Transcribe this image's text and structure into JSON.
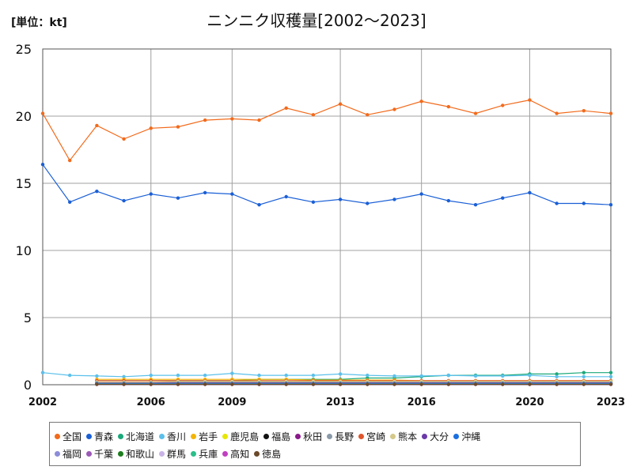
{
  "unit_label": "[単位：kt]",
  "title": "ニンニク収穫量[2002～2023]",
  "chart_data": {
    "type": "line",
    "title": "ニンニク収穫量[2002～2023]",
    "unit": "[単位：kt]",
    "xlim": [
      2002,
      2023
    ],
    "ylim": [
      0,
      25
    ],
    "yticks": [
      0,
      5,
      10,
      15,
      20,
      25
    ],
    "xticks": [
      2002,
      2006,
      2009,
      2013,
      2016,
      2020,
      2023
    ],
    "grid": true,
    "legend_position": "bottom",
    "series": [
      {
        "name": "全国",
        "color": "#f26a1b",
        "x": [
          2002,
          2003,
          2004,
          2005,
          2006,
          2007,
          2008,
          2009,
          2010,
          2011,
          2012,
          2013,
          2014,
          2015,
          2016,
          2017,
          2018,
          2019,
          2020,
          2021,
          2022,
          2023
        ],
        "values": [
          20.2,
          16.7,
          19.3,
          18.3,
          19.1,
          19.2,
          19.7,
          19.8,
          19.7,
          20.6,
          20.1,
          20.9,
          20.1,
          20.5,
          21.1,
          20.7,
          20.2,
          20.8,
          21.2,
          20.2,
          20.4,
          20.2
        ]
      },
      {
        "name": "青森",
        "color": "#1a5fd6",
        "x": [
          2002,
          2003,
          2004,
          2005,
          2006,
          2007,
          2008,
          2009,
          2010,
          2011,
          2012,
          2013,
          2014,
          2015,
          2016,
          2017,
          2018,
          2019,
          2020,
          2021,
          2022,
          2023
        ],
        "values": [
          16.4,
          13.6,
          14.4,
          13.7,
          14.2,
          13.9,
          14.3,
          14.2,
          13.4,
          14.0,
          13.6,
          13.8,
          13.5,
          13.8,
          14.2,
          13.7,
          13.4,
          13.9,
          14.3,
          13.5,
          13.5,
          13.4
        ]
      },
      {
        "name": "北海道",
        "color": "#1aa87a",
        "x": [
          2004,
          2005,
          2006,
          2007,
          2008,
          2009,
          2010,
          2011,
          2012,
          2013,
          2014,
          2015,
          2016,
          2017,
          2018,
          2019,
          2020,
          2021,
          2022,
          2023
        ],
        "values": [
          0.3,
          0.3,
          0.3,
          0.3,
          0.3,
          0.3,
          0.4,
          0.4,
          0.4,
          0.4,
          0.5,
          0.5,
          0.6,
          0.7,
          0.7,
          0.7,
          0.8,
          0.8,
          0.9,
          0.9
        ]
      },
      {
        "name": "香川",
        "color": "#5bc0eb",
        "x": [
          2002,
          2003,
          2004,
          2005,
          2006,
          2007,
          2008,
          2009,
          2010,
          2011,
          2012,
          2013,
          2014,
          2015,
          2016,
          2017,
          2018,
          2019,
          2020,
          2021,
          2022,
          2023
        ],
        "values": [
          0.9,
          0.7,
          0.65,
          0.6,
          0.7,
          0.7,
          0.7,
          0.85,
          0.7,
          0.7,
          0.7,
          0.8,
          0.7,
          0.65,
          0.65,
          0.7,
          0.65,
          0.65,
          0.7,
          0.6,
          0.6,
          0.6
        ]
      },
      {
        "name": "岩手",
        "color": "#f5b400",
        "x": [
          2004,
          2005,
          2006,
          2007,
          2008,
          2009,
          2010,
          2011,
          2012,
          2013,
          2014,
          2015,
          2016,
          2017,
          2018,
          2019,
          2020,
          2021,
          2022,
          2023
        ],
        "values": [
          0.4,
          0.4,
          0.4,
          0.4,
          0.4,
          0.4,
          0.4,
          0.4,
          0.35,
          0.35,
          0.35,
          0.35,
          0.3,
          0.3,
          0.3,
          0.3,
          0.3,
          0.3,
          0.3,
          0.3
        ]
      },
      {
        "name": "鹿児島",
        "color": "#e6e600",
        "x": [
          2004,
          2005,
          2006,
          2007,
          2008,
          2009,
          2010,
          2011,
          2012,
          2013,
          2014,
          2015,
          2016,
          2017,
          2018,
          2019,
          2020,
          2021,
          2022,
          2023
        ],
        "values": [
          0.1,
          0.15,
          0.15,
          0.15,
          0.2,
          0.3,
          0.3,
          0.25,
          0.2,
          0.2,
          0.2,
          0.2,
          0.2,
          0.2,
          0.2,
          0.2,
          0.2,
          0.2,
          0.2,
          0.2
        ]
      },
      {
        "name": "福島",
        "color": "#111111",
        "x": [
          2004,
          2005,
          2006,
          2007,
          2008,
          2009,
          2010,
          2011,
          2012,
          2013,
          2014,
          2015,
          2016,
          2017,
          2018,
          2019,
          2020,
          2021,
          2022,
          2023
        ],
        "values": [
          0.1,
          0.1,
          0.1,
          0.1,
          0.1,
          0.1,
          0.1,
          0.1,
          0.1,
          0.1,
          0.1,
          0.1,
          0.1,
          0.1,
          0.1,
          0.1,
          0.1,
          0.1,
          0.1,
          0.1
        ]
      },
      {
        "name": "秋田",
        "color": "#8b1a8b",
        "x": [
          2004,
          2005,
          2006,
          2007,
          2008,
          2009,
          2010,
          2011,
          2012,
          2013,
          2014,
          2015,
          2016,
          2017,
          2018,
          2019,
          2020,
          2021,
          2022,
          2023
        ],
        "values": [
          0.15,
          0.15,
          0.15,
          0.15,
          0.15,
          0.15,
          0.15,
          0.15,
          0.15,
          0.15,
          0.15,
          0.15,
          0.15,
          0.15,
          0.15,
          0.15,
          0.15,
          0.15,
          0.15,
          0.15
        ]
      },
      {
        "name": "長野",
        "color": "#8a99a8",
        "x": [
          2004,
          2005,
          2006,
          2007,
          2008,
          2009,
          2010,
          2011,
          2012,
          2013,
          2014,
          2015,
          2016,
          2017,
          2018,
          2019,
          2020,
          2021,
          2022,
          2023
        ],
        "values": [
          0.2,
          0.2,
          0.2,
          0.2,
          0.2,
          0.2,
          0.2,
          0.2,
          0.2,
          0.2,
          0.2,
          0.2,
          0.2,
          0.2,
          0.2,
          0.2,
          0.2,
          0.2,
          0.2,
          0.2
        ]
      },
      {
        "name": "宮崎",
        "color": "#e0552b",
        "x": [
          2004,
          2005,
          2006,
          2007,
          2008,
          2009,
          2010,
          2011,
          2012,
          2013,
          2014,
          2015,
          2016,
          2017,
          2018,
          2019,
          2020,
          2021,
          2022,
          2023
        ],
        "values": [
          0.3,
          0.3,
          0.3,
          0.3,
          0.3,
          0.3,
          0.3,
          0.3,
          0.3,
          0.3,
          0.3,
          0.3,
          0.3,
          0.3,
          0.3,
          0.3,
          0.3,
          0.3,
          0.3,
          0.3
        ]
      },
      {
        "name": "熊本",
        "color": "#d4c98a",
        "x": [
          2004,
          2005,
          2006,
          2007,
          2008,
          2009,
          2010,
          2011,
          2012,
          2013,
          2014,
          2015,
          2016,
          2017,
          2018,
          2019,
          2020,
          2021,
          2022,
          2023
        ],
        "values": [
          0.2,
          0.2,
          0.2,
          0.25,
          0.25,
          0.25,
          0.25,
          0.25,
          0.25,
          0.25,
          0.25,
          0.25,
          0.25,
          0.25,
          0.25,
          0.25,
          0.25,
          0.25,
          0.25,
          0.25
        ]
      },
      {
        "name": "大分",
        "color": "#6a3aa8",
        "x": [
          2004,
          2005,
          2006,
          2007,
          2008,
          2009,
          2010,
          2011,
          2012,
          2013,
          2014,
          2015,
          2016,
          2017,
          2018,
          2019,
          2020,
          2021,
          2022,
          2023
        ],
        "values": [
          0.1,
          0.1,
          0.1,
          0.1,
          0.1,
          0.1,
          0.1,
          0.1,
          0.1,
          0.1,
          0.1,
          0.1,
          0.1,
          0.1,
          0.1,
          0.1,
          0.1,
          0.1,
          0.1,
          0.1
        ]
      },
      {
        "name": "沖縄",
        "color": "#1a6fe0",
        "x": [
          2004,
          2005,
          2006,
          2007,
          2008,
          2009,
          2010,
          2011,
          2012,
          2013,
          2014,
          2015,
          2016,
          2017,
          2018,
          2019,
          2020,
          2021,
          2022,
          2023
        ],
        "values": [
          0.1,
          0.1,
          0.1,
          0.1,
          0.1,
          0.1,
          0.1,
          0.1,
          0.1,
          0.1,
          0.1,
          0.1,
          0.1,
          0.1,
          0.1,
          0.1,
          0.1,
          0.1,
          0.1,
          0.1
        ]
      },
      {
        "name": "福岡",
        "color": "#8c8cd9",
        "x": [
          2004,
          2005,
          2006,
          2007,
          2008,
          2009,
          2010,
          2011,
          2012,
          2013,
          2014,
          2015,
          2016,
          2017,
          2018,
          2019,
          2020,
          2021,
          2022,
          2023
        ],
        "values": [
          0.05,
          0.05,
          0.05,
          0.05,
          0.05,
          0.05,
          0.05,
          0.05,
          0.05,
          0.05,
          0.05,
          0.05,
          0.05,
          0.05,
          0.05,
          0.05,
          0.05,
          0.05,
          0.05,
          0.05
        ]
      },
      {
        "name": "千葉",
        "color": "#9b59b6",
        "x": [
          2004,
          2005,
          2006,
          2007,
          2008,
          2009,
          2010,
          2011,
          2012,
          2013,
          2014,
          2015,
          2016,
          2017,
          2018,
          2019,
          2020,
          2021,
          2022,
          2023
        ],
        "values": [
          0.05,
          0.05,
          0.05,
          0.05,
          0.05,
          0.05,
          0.05,
          0.05,
          0.05,
          0.05,
          0.05,
          0.05,
          0.05,
          0.05,
          0.05,
          0.05,
          0.05,
          0.05,
          0.05,
          0.05
        ]
      },
      {
        "name": "和歌山",
        "color": "#1e7d1e",
        "x": [
          2004,
          2005,
          2006,
          2007,
          2008,
          2009,
          2010,
          2011,
          2012,
          2013,
          2014,
          2015,
          2016,
          2017,
          2018,
          2019,
          2020,
          2021,
          2022,
          2023
        ],
        "values": [
          0.05,
          0.05,
          0.05,
          0.05,
          0.05,
          0.05,
          0.05,
          0.05,
          0.05,
          0.05,
          0.05,
          0.05,
          0.05,
          0.05,
          0.05,
          0.05,
          0.05,
          0.05,
          0.05,
          0.05
        ]
      },
      {
        "name": "群馬",
        "color": "#c9b3e6",
        "x": [
          2004,
          2005,
          2006,
          2007,
          2008,
          2009,
          2010,
          2011,
          2012,
          2013,
          2014,
          2015,
          2016,
          2017,
          2018,
          2019,
          2020,
          2021,
          2022,
          2023
        ],
        "values": [
          0.05,
          0.05,
          0.05,
          0.05,
          0.05,
          0.05,
          0.05,
          0.05,
          0.05,
          0.05,
          0.05,
          0.05,
          0.05,
          0.05,
          0.05,
          0.05,
          0.05,
          0.05,
          0.05,
          0.05
        ]
      },
      {
        "name": "兵庫",
        "color": "#2bbf8a",
        "x": [
          2004,
          2005,
          2006,
          2007,
          2008,
          2009,
          2010,
          2011,
          2012,
          2013,
          2014,
          2015,
          2016,
          2017,
          2018,
          2019,
          2020,
          2021,
          2022,
          2023
        ],
        "values": [
          0.05,
          0.05,
          0.05,
          0.05,
          0.05,
          0.05,
          0.05,
          0.05,
          0.05,
          0.05,
          0.05,
          0.05,
          0.05,
          0.05,
          0.05,
          0.05,
          0.05,
          0.05,
          0.05,
          0.05
        ]
      },
      {
        "name": "高知",
        "color": "#c040c0",
        "x": [
          2004,
          2005,
          2006,
          2007,
          2008,
          2009,
          2010,
          2011,
          2012,
          2013,
          2014,
          2015,
          2016,
          2017,
          2018,
          2019,
          2020,
          2021,
          2022,
          2023
        ],
        "values": [
          0.03,
          0.03,
          0.03,
          0.03,
          0.03,
          0.03,
          0.03,
          0.03,
          0.03,
          0.03,
          0.03,
          0.03,
          0.03,
          0.03,
          0.03,
          0.03,
          0.03,
          0.03,
          0.03,
          0.03
        ]
      },
      {
        "name": "徳島",
        "color": "#6b4a2a",
        "x": [
          2004,
          2005,
          2006,
          2007,
          2008,
          2009,
          2010,
          2011,
          2012,
          2013,
          2014,
          2015,
          2016,
          2017,
          2018,
          2019,
          2020,
          2021,
          2022,
          2023
        ],
        "values": [
          0.03,
          0.03,
          0.03,
          0.03,
          0.03,
          0.03,
          0.03,
          0.03,
          0.03,
          0.03,
          0.03,
          0.03,
          0.03,
          0.03,
          0.03,
          0.03,
          0.03,
          0.03,
          0.03,
          0.03
        ]
      }
    ]
  }
}
